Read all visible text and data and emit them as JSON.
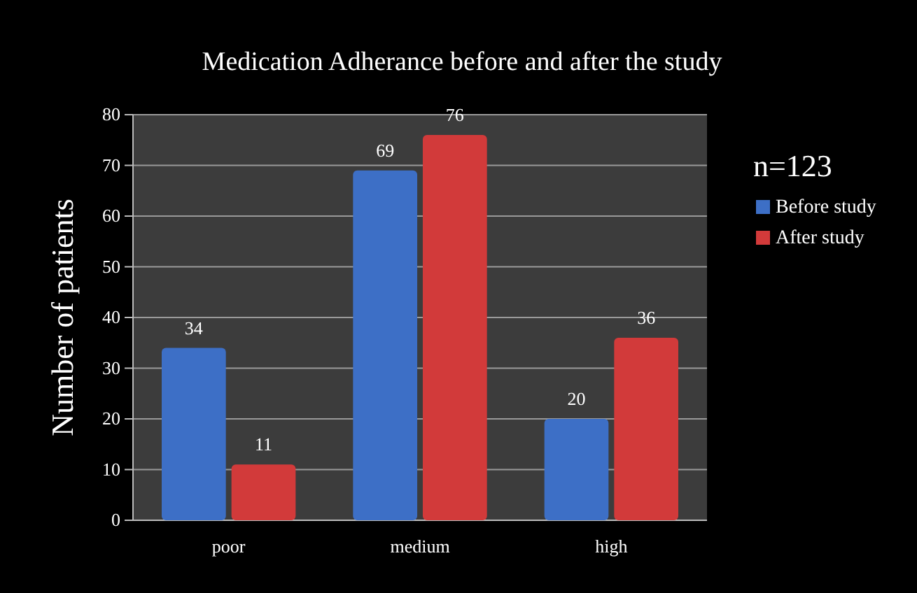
{
  "chart_data": {
    "type": "bar",
    "title": "Medication Adherance before and after the study",
    "ylabel": "Number of patients",
    "annotations": [
      "n=123"
    ],
    "categories": [
      "poor",
      "medium",
      "high"
    ],
    "series": [
      {
        "name": "Before study",
        "color": "#3d6fc6",
        "values": [
          34,
          69,
          20
        ]
      },
      {
        "name": "After study",
        "color": "#d23a3a",
        "values": [
          11,
          76,
          36
        ]
      }
    ],
    "ylim": [
      0,
      80
    ],
    "yticks": [
      0,
      10,
      20,
      30,
      40,
      50,
      60,
      70,
      80
    ],
    "grid": "y",
    "legend": "right",
    "data_labels": true
  }
}
